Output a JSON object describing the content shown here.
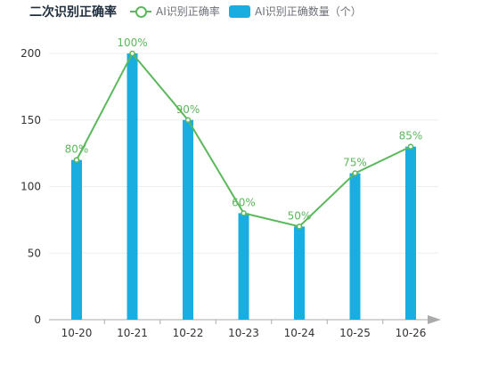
{
  "title": "二次识别正确率",
  "legend": {
    "line_label": "AI识别正确率",
    "bar_label": "AI识别正确数量（个）"
  },
  "colors": {
    "bar": "#1aaee0",
    "line": "#5cb85c",
    "axis": "#aaaaaa",
    "grid": "#eeeeee"
  },
  "chart_data": {
    "type": "bar",
    "categories": [
      "10-20",
      "10-21",
      "10-22",
      "10-23",
      "10-24",
      "10-25",
      "10-26"
    ],
    "ylim": [
      0,
      200
    ],
    "yticks": [
      0,
      50,
      100,
      150,
      200
    ],
    "legend_position": "top",
    "grid": true,
    "series": [
      {
        "name": "AI识别正确数量（个）",
        "type": "bar",
        "values": [
          120,
          200,
          150,
          80,
          70,
          110,
          130
        ]
      },
      {
        "name": "AI识别正确率",
        "type": "line",
        "values": [
          120,
          200,
          150,
          80,
          70,
          110,
          130
        ],
        "labels": [
          "80%",
          "100%",
          "90%",
          "60%",
          "50%",
          "75%",
          "85%"
        ]
      }
    ]
  }
}
